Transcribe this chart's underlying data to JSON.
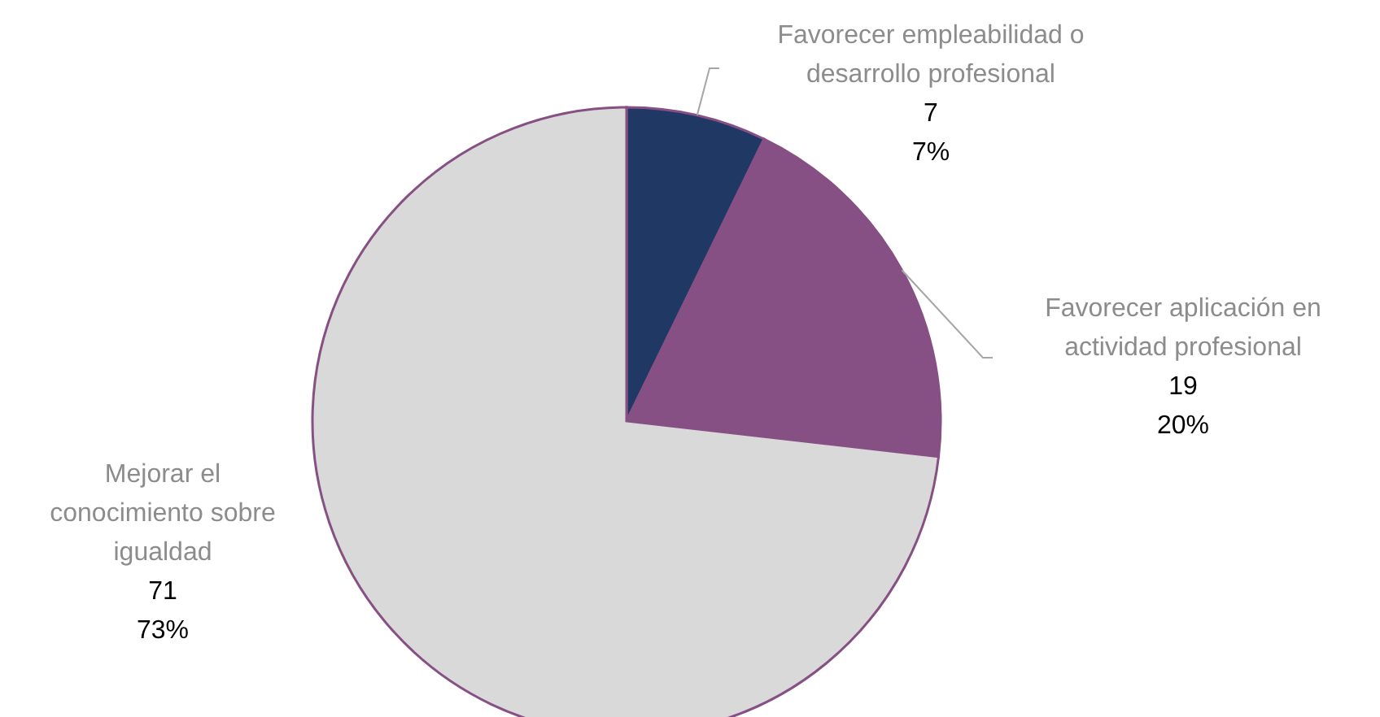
{
  "chart_data": {
    "type": "pie",
    "categories": [
      "Favorecer empleabilidad o desarrollo profesional",
      "Favorecer aplicación en actividad profesional",
      "Mejorar el conocimiento sobre igualdad"
    ],
    "values": [
      7,
      19,
      71
    ],
    "colors": [
      "#203864",
      "#875084",
      "#d9d9d9"
    ],
    "value_labels": [
      "7\n7%",
      "19\n20%",
      "71\n73%"
    ],
    "legend": false
  }
}
